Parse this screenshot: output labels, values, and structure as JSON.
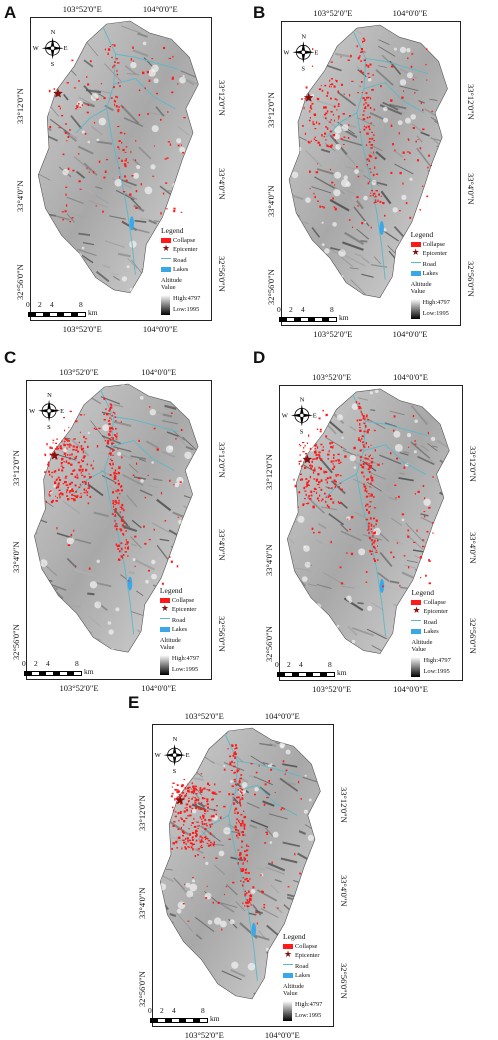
{
  "panels": [
    {
      "letter": "A",
      "density": 0.25
    },
    {
      "letter": "B",
      "density": 0.55
    },
    {
      "letter": "C",
      "density": 0.85
    },
    {
      "letter": "D",
      "density": 0.8
    },
    {
      "letter": "E",
      "density": 1.0
    }
  ],
  "coords": {
    "top_left": "103°52'0\"E",
    "top_right": "104°0'0\"E",
    "lat1": "33°12'0\"N",
    "lat2": "33°4'0\"N",
    "lat3": "32°56'0\"N"
  },
  "compass": {
    "n": "N",
    "s": "S",
    "e": "E",
    "w": "W"
  },
  "legend": {
    "title": "Legend",
    "collapse": "Collapse",
    "epicenter": "Epicenter",
    "road": "Road",
    "lakes": "Lakes",
    "altitude": "Altitude",
    "value": "Value",
    "high": "High:4797",
    "low": "Low:1995"
  },
  "scale": {
    "t0": "0",
    "t1": "2",
    "t2": "4",
    "t3": "8",
    "unit": "km"
  },
  "colors": {
    "collapse": "#ff1a1a",
    "epicenter": "#8b1010",
    "road": "#5ab8c8",
    "lakes": "#3aa8e8"
  }
}
